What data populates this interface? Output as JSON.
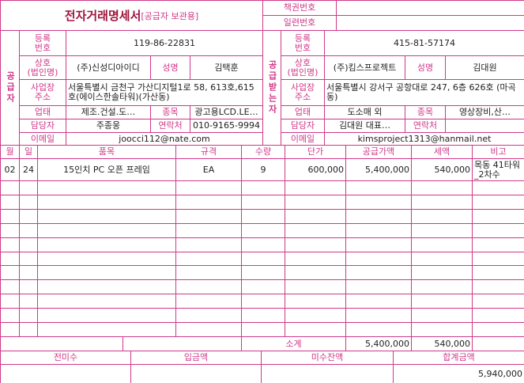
{
  "header": {
    "title": "전자거래명세서",
    "subtitle": "[공급자 보관용]",
    "book_no_label": "책권번호",
    "serial_no_label": "일련번호"
  },
  "supplier": {
    "section": "공급자",
    "labels": {
      "reg_no": "등록\n번호",
      "name": "상호\n(법인명)",
      "ceo": "성명",
      "address": "사업장\n주소",
      "business_type": "업태",
      "business_item": "종목",
      "contact": "담당자",
      "phone": "연락처",
      "email": "이메일"
    },
    "reg_no": "119-86-22831",
    "name": "(주)신성디아이디",
    "ceo": "김택훈",
    "address": "서울특별시 금천구 가산디지털1로 58, 613호,615호(에이스한솔타워)(가산동)",
    "business_type": "제조.건설.도…",
    "business_item": "광고용LCD.LE…",
    "contact": "주종웅",
    "phone": "010-9165-9994",
    "email": "joocci112@nate.com"
  },
  "receiver": {
    "section": "공급받는자",
    "labels": {
      "reg_no": "등록\n번호",
      "name": "상호\n(법인명)",
      "ceo": "성명",
      "address": "사업장\n주소",
      "business_type": "업태",
      "business_item": "종목",
      "contact": "담당자",
      "phone": "연락처",
      "email": "이메일"
    },
    "reg_no": "415-81-57174",
    "name": "(주)킴스프로젝트",
    "ceo": "김대원",
    "address": "서울특별시 강서구 공항대로 247, 6층 626호 (마곡동)",
    "business_type": "도소매 외",
    "business_item": "영상장비,산…",
    "contact": "김대원 대표…",
    "email": "kimsproject1313@hanmail.net"
  },
  "table": {
    "columns": [
      "월",
      "일",
      "품목",
      "규격",
      "수량",
      "단가",
      "공급가액",
      "세액",
      "비고"
    ],
    "rows": [
      [
        "02",
        "24",
        "15인치 PC 오픈 프레임",
        "EA",
        "9",
        "600,000",
        "5,400,000",
        "540,000",
        "목동 41타워_2차수"
      ]
    ]
  },
  "totals": {
    "label": "소계",
    "supply": "5,400,000",
    "tax": "540,000"
  },
  "footer": {
    "labels": [
      "전미수",
      "입금액",
      "미수잔액",
      "합계금액"
    ],
    "grand_total": "5,940,000"
  }
}
